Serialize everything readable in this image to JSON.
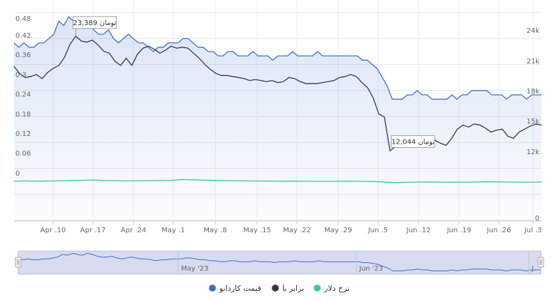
{
  "chart_data": {
    "type": "line",
    "title": "",
    "xlabel": "",
    "ylabel": "",
    "x_tick_labels": [
      "Apr .10",
      "Apr .17",
      "Apr .24",
      "May .1",
      "May .8",
      "May .15",
      "May .22",
      "May .29",
      "Jun .5",
      "Jun .12",
      "Jun .19",
      "Jun .26",
      "Jul .3"
    ],
    "y_left_ticks": [
      "0.48",
      "0.42",
      "0.36",
      "0.3",
      "0.24",
      "0.18",
      "0.12",
      "0.06",
      "0"
    ],
    "y_right_ticks": [
      "24k",
      "21k",
      "18k",
      "15k",
      "12k",
      "0"
    ],
    "ylim_left": [
      0,
      0.48
    ],
    "ylim_right": [
      0,
      24000
    ],
    "grid": true,
    "legend_position": "bottom",
    "series": [
      {
        "name": "قیمت کاردانو",
        "color": "#3b6fd4",
        "axis": "left",
        "values": [
          0.41,
          0.4,
          0.41,
          0.4,
          0.4,
          0.41,
          0.41,
          0.42,
          0.43,
          0.46,
          0.45,
          0.47,
          0.46,
          0.45,
          0.47,
          0.46,
          0.44,
          0.43,
          0.43,
          0.44,
          0.42,
          0.41,
          0.42,
          0.43,
          0.42,
          0.41,
          0.41,
          0.4,
          0.39,
          0.4,
          0.4,
          0.41,
          0.41,
          0.41,
          0.42,
          0.42,
          0.41,
          0.4,
          0.4,
          0.39,
          0.39,
          0.38,
          0.38,
          0.39,
          0.39,
          0.38,
          0.38,
          0.38,
          0.39,
          0.38,
          0.38,
          0.38,
          0.37,
          0.38,
          0.38,
          0.38,
          0.39,
          0.38,
          0.38,
          0.38,
          0.38,
          0.39,
          0.38,
          0.38,
          0.38,
          0.38,
          0.38,
          0.38,
          0.38,
          0.38,
          0.37,
          0.37,
          0.36,
          0.35,
          0.33,
          0.31,
          0.28,
          0.28,
          0.28,
          0.29,
          0.29,
          0.3,
          0.29,
          0.29,
          0.28,
          0.28,
          0.28,
          0.28,
          0.29,
          0.28,
          0.29,
          0.29,
          0.3,
          0.3,
          0.3,
          0.3,
          0.29,
          0.29,
          0.29,
          0.28,
          0.29,
          0.29,
          0.29,
          0.28,
          0.29,
          0.29,
          0.29
        ]
      },
      {
        "name": "برابر با",
        "color": "#333a45",
        "axis": "right",
        "values": [
          20400,
          19700,
          19300,
          19400,
          19600,
          19200,
          19800,
          20200,
          20500,
          21300,
          22600,
          23389,
          22900,
          22800,
          23000,
          22500,
          21900,
          21700,
          20900,
          20500,
          21200,
          20500,
          21600,
          22200,
          22400,
          22100,
          21700,
          22000,
          22400,
          22200,
          22300,
          22200,
          21700,
          21200,
          20600,
          20100,
          19700,
          19500,
          19500,
          19400,
          19300,
          19200,
          19000,
          19100,
          19000,
          18900,
          19000,
          18800,
          18900,
          19300,
          19200,
          18900,
          18700,
          18700,
          18700,
          18800,
          18900,
          19000,
          19300,
          19400,
          19600,
          19400,
          18800,
          18300,
          17300,
          15700,
          15400,
          12044,
          12500,
          12600,
          13300,
          12800,
          12600,
          12700,
          13000,
          13100,
          12800,
          12600,
          13300,
          14200,
          14600,
          14400,
          14700,
          14600,
          14300,
          13900,
          14100,
          14200,
          13500,
          13300,
          13900,
          14200,
          14500,
          14700,
          14600
        ]
      },
      {
        "name": "نرخ دلار",
        "color": "#3cc98c",
        "axis": "right",
        "values": [
          7400,
          7450,
          7420,
          7440,
          7460,
          7500,
          7520,
          7560,
          7500,
          7480,
          7450,
          7460,
          7480,
          7500,
          7520,
          7620,
          7580,
          7540,
          7500,
          7480,
          7460,
          7450,
          7440,
          7430,
          7420,
          7420,
          7410,
          7400,
          7400,
          7410,
          7420,
          7400,
          7380,
          7300,
          7250,
          7280,
          7320,
          7330,
          7310,
          7300,
          7300,
          7320,
          7340,
          7330,
          7320,
          7310,
          7300,
          7320
        ]
      }
    ],
    "annotations": [
      {
        "text": "تومان 23,389",
        "series": 1,
        "index": 11
      },
      {
        "text": "تومان 12,044",
        "series": 1,
        "index": 67
      }
    ],
    "navigator": {
      "labels": [
        "May '23",
        "Jun '23",
        "J"
      ]
    }
  },
  "legend": {
    "items": [
      {
        "label": "قیمت کاردانو",
        "color": "#3b6fd4"
      },
      {
        "label": "برابر با",
        "color": "#333a45"
      },
      {
        "label": "نرخ دلار",
        "color": "#3cc98c"
      }
    ]
  }
}
